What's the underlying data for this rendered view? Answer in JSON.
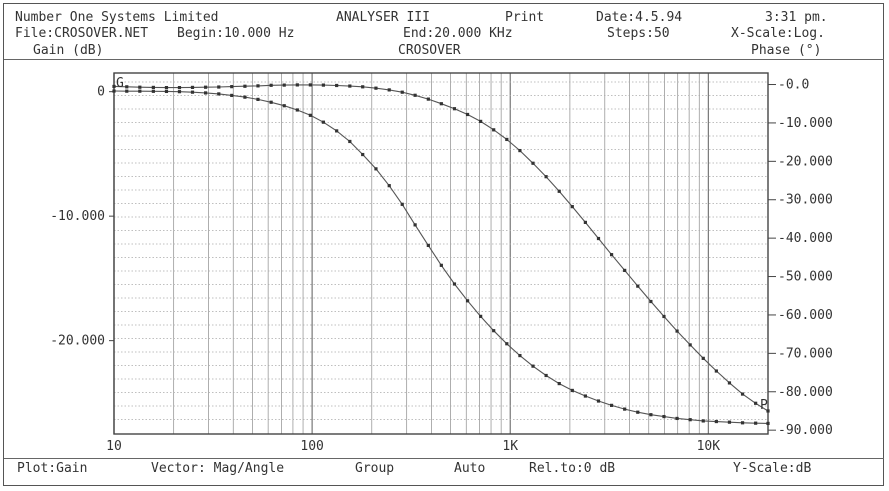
{
  "header": {
    "company": "Number One Systems Limited",
    "product": "ANALYSER III",
    "mode": "Print",
    "date": "Date:4.5.94",
    "time": "3:31 pm.",
    "file": "File:CROSOVER.NET",
    "begin": "Begin:10.000 Hz",
    "end": "End:20.000 KHz",
    "steps": "Steps:50",
    "xscale": "X-Scale:Log."
  },
  "footer": {
    "plot": "Plot:Gain",
    "vector": "Vector: Mag/Angle",
    "group": "Group",
    "auto": "Auto",
    "rel": "Rel.to:0 dB",
    "yscale": "Y-Scale:dB"
  },
  "chart_data": {
    "type": "line",
    "title": "CROSOVER",
    "ylabel": "Gain (dB)",
    "y2label": "Phase (°)",
    "xscale": "log",
    "xlim": [
      10,
      20000
    ],
    "ylim": [
      -27.5,
      1.5
    ],
    "y2lim": [
      -91,
      3
    ],
    "x_ticks": [
      {
        "value": 10,
        "label": "10"
      },
      {
        "value": 100,
        "label": "100"
      },
      {
        "value": 1000,
        "label": "1K"
      },
      {
        "value": 10000,
        "label": "10K"
      }
    ],
    "y_ticks": [
      {
        "value": 0,
        "label": "0"
      },
      {
        "value": -10,
        "label": "-10.000"
      },
      {
        "value": -20,
        "label": "-20.000"
      }
    ],
    "y2_ticks": [
      {
        "value": 0,
        "label": "-0.0"
      },
      {
        "value": -10,
        "label": "-10.000"
      },
      {
        "value": -20,
        "label": "-20.000"
      },
      {
        "value": -30,
        "label": "-30.000"
      },
      {
        "value": -40,
        "label": "-40.000"
      },
      {
        "value": -50,
        "label": "-50.000"
      },
      {
        "value": -60,
        "label": "-60.000"
      },
      {
        "value": -70,
        "label": "-70.000"
      },
      {
        "value": -80,
        "label": "-80.000"
      },
      {
        "value": -90,
        "label": "-90.000"
      }
    ],
    "grid": true,
    "series": [
      {
        "marker": "G",
        "axis": "left",
        "x": [
          10,
          11.6,
          13.5,
          15.8,
          18.4,
          21.4,
          24.9,
          29,
          33.8,
          39.3,
          45.8,
          53.3,
          62.1,
          72.3,
          84.2,
          98,
          114,
          133,
          155,
          180,
          210,
          245,
          285,
          331,
          386,
          449,
          523,
          609,
          709,
          825,
          961,
          1119,
          1303,
          1517,
          1767,
          2057,
          2395,
          2789,
          3247,
          3781,
          4403,
          5127,
          5969,
          6951,
          8093,
          9424,
          10974,
          12778,
          14879,
          17325,
          20000
        ],
        "values": [
          0.05,
          0.04,
          0.04,
          0.03,
          0.02,
          0.0,
          -0.04,
          -0.1,
          -0.18,
          -0.3,
          -0.44,
          -0.62,
          -0.85,
          -1.13,
          -1.47,
          -1.9,
          -2.45,
          -3.15,
          -4.0,
          -5.05,
          -6.2,
          -7.55,
          -9.05,
          -10.7,
          -12.35,
          -13.95,
          -15.45,
          -16.8,
          -18.05,
          -19.2,
          -20.25,
          -21.2,
          -22.05,
          -22.8,
          -23.45,
          -24.0,
          -24.45,
          -24.85,
          -25.2,
          -25.5,
          -25.75,
          -25.95,
          -26.1,
          -26.25,
          -26.35,
          -26.45,
          -26.5,
          -26.55,
          -26.6,
          -26.63,
          -26.65
        ]
      },
      {
        "marker": "P",
        "axis": "right",
        "x": [
          10,
          11.6,
          13.5,
          15.8,
          18.4,
          21.4,
          24.9,
          29,
          33.8,
          39.3,
          45.8,
          53.3,
          62.1,
          72.3,
          84.2,
          98,
          114,
          133,
          155,
          180,
          210,
          245,
          285,
          331,
          386,
          449,
          523,
          609,
          709,
          825,
          961,
          1119,
          1303,
          1517,
          1767,
          2057,
          2395,
          2789,
          3247,
          3781,
          4403,
          5127,
          5969,
          6951,
          8093,
          9424,
          10974,
          12778,
          14879,
          17325,
          20000
        ],
        "values": [
          -0.5,
          -0.6,
          -0.7,
          -0.75,
          -0.8,
          -0.8,
          -0.75,
          -0.7,
          -0.65,
          -0.55,
          -0.45,
          -0.35,
          -0.2,
          -0.15,
          -0.1,
          -0.1,
          -0.15,
          -0.25,
          -0.4,
          -0.6,
          -0.95,
          -1.4,
          -2.0,
          -2.8,
          -3.8,
          -5.0,
          -6.3,
          -7.8,
          -9.6,
          -11.8,
          -14.3,
          -17.2,
          -20.5,
          -24.0,
          -27.8,
          -31.8,
          -35.9,
          -40.1,
          -44.3,
          -48.4,
          -52.5,
          -56.5,
          -60.4,
          -64.2,
          -67.8,
          -71.3,
          -74.6,
          -77.7,
          -80.6,
          -83.0,
          -85.0
        ]
      }
    ]
  }
}
